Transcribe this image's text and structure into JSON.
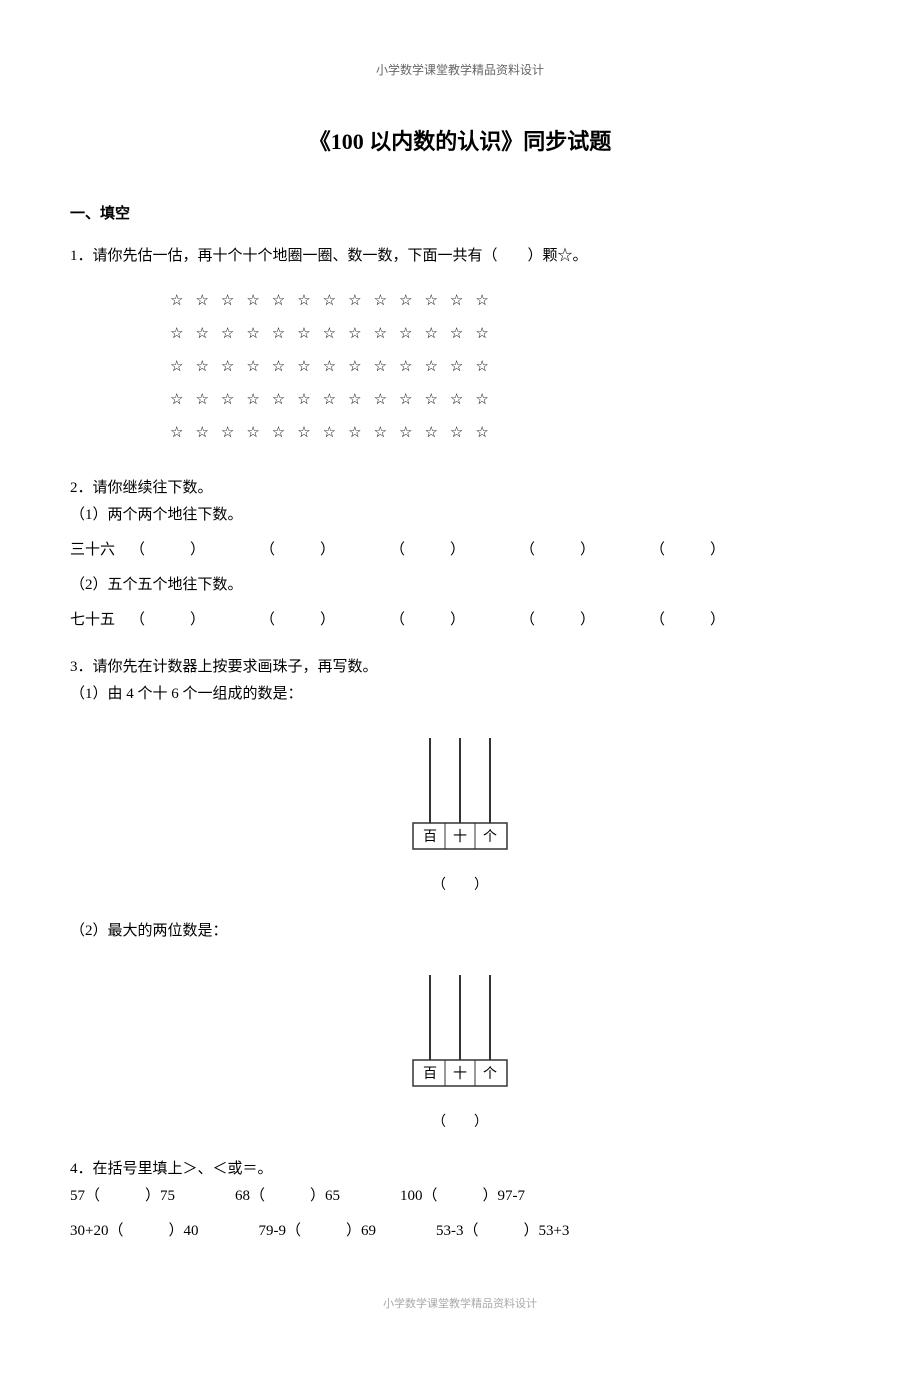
{
  "header": "小学数学课堂教学精品资料设计",
  "title": "《100 以内数的认识》同步试题",
  "section1": {
    "heading": "一、填空",
    "q1": {
      "text": "1．请你先估一估，再十个十个地圈一圈、数一数，下面一共有（　　）颗☆。",
      "stars": {
        "rows": 5,
        "cols": 13,
        "char": "☆"
      }
    },
    "q2": {
      "text": "2．请你继续往下数。",
      "sub1_label": "（1）两个两个地往下数。",
      "sub1_start": "三十六",
      "sub2_label": "（2）五个五个地往下数。",
      "sub2_start": "七十五",
      "blank": "（　　　）"
    },
    "q3": {
      "text": "3．请你先在计数器上按要求画珠子，再写数。",
      "sub1_label": "（1）由 4 个十 6 个一组成的数是：",
      "sub2_label": "（2）最大的两位数是：",
      "caption": "（　　）",
      "abacus": {
        "labels": [
          "百",
          "十",
          "个"
        ],
        "box_stroke": "#333333",
        "rod_stroke": "#333333",
        "label_fontsize": 14
      }
    },
    "q4": {
      "text": "4．在括号里填上＞、＜或＝。",
      "row1": [
        "57（　　　）75",
        "68（　　　）65",
        "100（　　　）97-7"
      ],
      "row2": [
        "30+20（　　　）40",
        "79-9（　　　）69",
        "53-3（　　　）53+3"
      ]
    }
  },
  "footer": "小学数学课堂教学精品资料设计"
}
